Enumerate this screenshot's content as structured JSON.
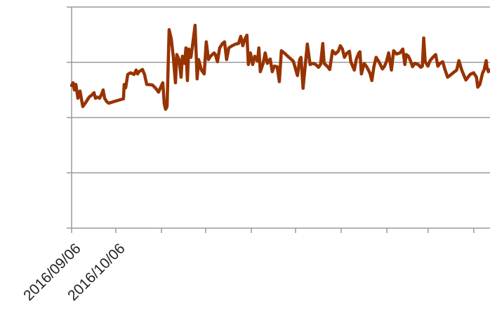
{
  "chart_data": {
    "type": "line",
    "x": [
      0,
      1,
      1.9,
      2.9,
      4.3,
      5.7,
      7.6,
      9.5,
      11.9,
      13.8,
      15.2,
      16.2,
      17.6,
      19,
      20.5,
      21.4,
      22.4,
      23.8,
      25.2,
      30,
      35.2,
      35.7,
      36.7,
      38.1,
      40,
      42.4,
      43.8,
      44.8,
      45.7,
      48.1,
      49.5,
      51,
      54.8,
      57.1,
      59,
      60.5,
      61.9,
      62.9,
      63.8,
      64.8,
      66.2,
      67.6,
      69,
      70.5,
      71.4,
      72.9,
      74.3,
      75.2,
      76.7,
      77.6,
      78.6,
      79.5,
      81,
      82.4,
      83.8,
      85.2,
      86.2,
      88.1,
      90,
      91.4,
      92.9,
      94.3,
      96.7,
      97.6,
      99,
      100.5,
      102.4,
      103.8,
      105.2,
      106.7,
      109,
      111.4,
      113.3,
      114.8,
      116.2,
      117.6,
      119,
      120,
      121.4,
      122.9,
      124.3,
      126.2,
      127.1,
      128.1,
      130,
      131.4,
      132.9,
      134.8,
      136.2,
      137.6,
      139.5,
      141,
      142.4,
      144.3,
      146.7,
      150.5,
      153.3,
      154.8,
      155.7,
      157.1,
      158.1,
      160,
      161.9,
      163.8,
      165.7,
      167.6,
      169,
      170.5,
      171.4,
      173.8,
      175.2,
      177.1,
      179,
      181,
      182.4,
      183.8,
      185.2,
      186.7,
      188.6,
      189.5,
      191.9,
      193.3,
      194.8,
      195.7,
      196.7,
      198.6,
      200.5,
      202.4,
      203.8,
      205.2,
      206.7,
      208.6,
      211,
      212.4,
      213.8,
      215.2,
      217.1,
      218.6,
      220.5,
      222.9,
      224.8,
      226.2,
      227.1,
      228.6,
      230,
      231.4,
      232.9,
      235.2,
      237.1,
      238.1,
      239,
      240,
      241.9,
      243.3,
      245.2,
      247.1,
      248.6,
      250,
      251.9,
      253.3,
      255.2,
      256.7,
      259,
      261.4,
      262.9,
      264.8,
      267.6,
      270.5,
      272.9,
      274.8,
      275.7,
      277.1,
      279,
      280,
      281.4,
      281.9,
      282.9,
      283.8
    ],
    "values": [
      2.58,
      2.63,
      2.5,
      2.6,
      2.35,
      2.48,
      2.2,
      2.27,
      2.37,
      2.41,
      2.45,
      2.35,
      2.37,
      2.35,
      2.43,
      2.5,
      2.35,
      2.29,
      2.26,
      2.3,
      2.34,
      2.6,
      2.54,
      2.78,
      2.81,
      2.78,
      2.86,
      2.79,
      2.83,
      2.87,
      2.78,
      2.6,
      2.59,
      2.53,
      2.46,
      2.55,
      2.63,
      2.25,
      2.15,
      2.2,
      3.59,
      3.43,
      3.11,
      2.63,
      3.14,
      3.05,
      2.73,
      3.11,
      2.98,
      3.26,
      2.67,
      3.24,
      3.09,
      3.37,
      3.67,
      2.7,
      3.05,
      2.86,
      2.79,
      3.37,
      3.05,
      3.11,
      3.17,
      3.14,
      3.01,
      3.26,
      3.34,
      3.37,
      3.05,
      3.26,
      3.3,
      3.33,
      3.34,
      3.47,
      3.3,
      3.42,
      3.49,
      2.96,
      3.17,
      2.96,
      3.11,
      3.02,
      3.26,
      2.83,
      2.98,
      3.17,
      2.98,
      3.06,
      2.83,
      2.93,
      2.92,
      2.65,
      3.21,
      3.17,
      3.11,
      3.02,
      2.76,
      3.05,
      3.09,
      2.53,
      2.81,
      3.33,
      2.96,
      2.98,
      2.96,
      2.91,
      2.96,
      3.34,
      2.98,
      2.92,
      2.87,
      3.21,
      3.15,
      3.2,
      3.3,
      3.24,
      3.09,
      3.16,
      3.2,
      3.01,
      2.86,
      3.06,
      3.16,
      3.19,
      2.79,
      2.98,
      2.91,
      2.81,
      2.67,
      2.92,
      3.09,
      3.01,
      2.88,
      2.93,
      3.02,
      3.17,
      2.86,
      3.21,
      3.15,
      3.17,
      3.24,
      2.96,
      3.14,
      3.11,
      3.03,
      2.92,
      2.98,
      2.96,
      2.91,
      2.93,
      3.44,
      3.01,
      2.93,
      3.03,
      3.09,
      3.14,
      2.93,
      2.98,
      3.01,
      2.88,
      2.73,
      2.76,
      2.81,
      2.86,
      3.03,
      2.86,
      2.68,
      2.78,
      2.81,
      2.73,
      2.55,
      2.6,
      2.81,
      2.86,
      3.03,
      2.91,
      2.83,
      2.86
    ],
    "color": "#973300",
    "xlim": [
      0,
      284
    ],
    "xticks": [
      {
        "value": 0,
        "label": "2016/09/06"
      },
      {
        "value": 30,
        "label": "2016/10/06"
      },
      {
        "value": 61,
        "label": null
      },
      {
        "value": 91,
        "label": null
      },
      {
        "value": 122,
        "label": null
      },
      {
        "value": 152,
        "label": null
      },
      {
        "value": 183,
        "label": null
      },
      {
        "value": 214,
        "label": null
      },
      {
        "value": 242,
        "label": null
      },
      {
        "value": 273,
        "label": null
      }
    ],
    "ylim": [
      0,
      4
    ],
    "yticks": [
      0,
      1,
      2,
      3,
      4
    ],
    "grid": true
  }
}
